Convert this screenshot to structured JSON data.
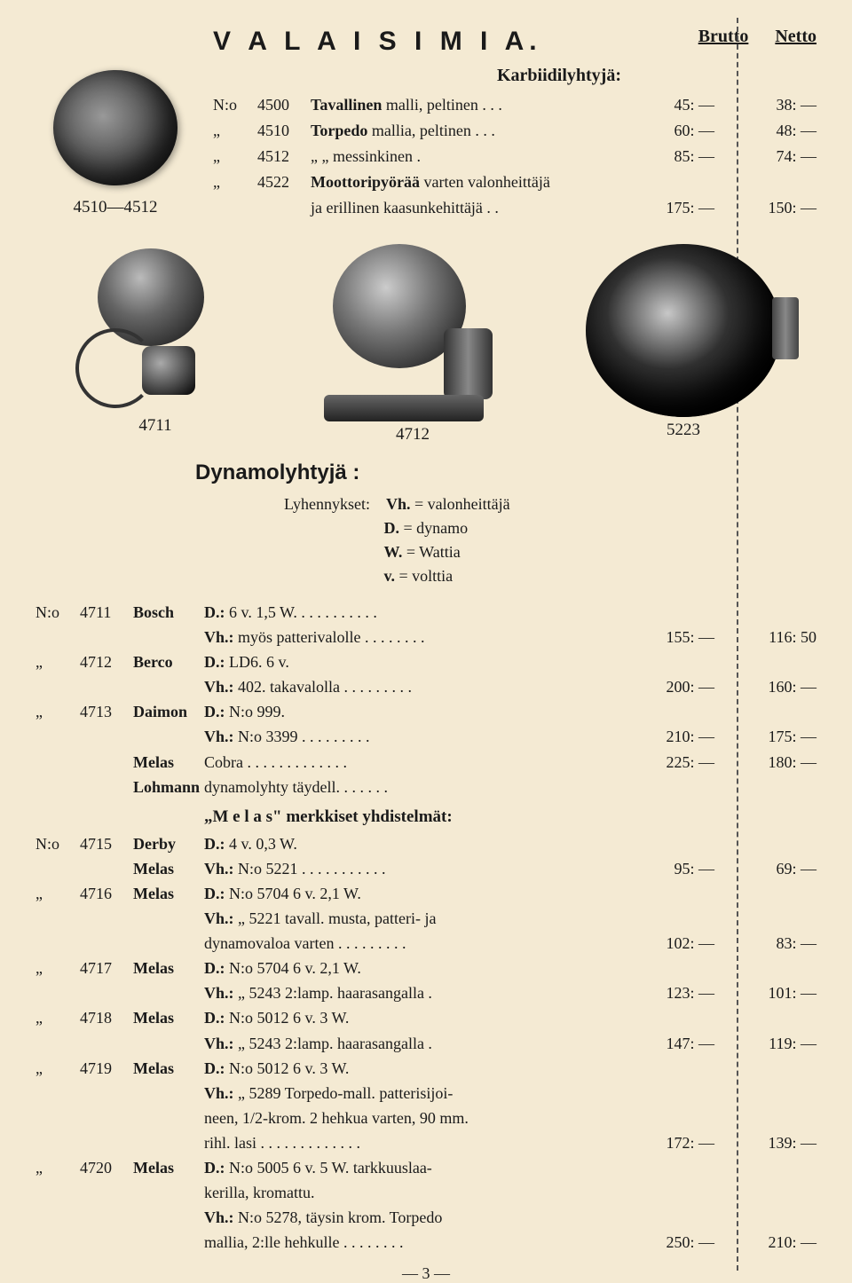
{
  "header": {
    "title": "V A L A I S I M I A.",
    "brutto": "Brutto",
    "netto": "Netto"
  },
  "karbiidi": {
    "heading": "Karbiidilyhtyjä:",
    "figlabel": "4510—4512",
    "rows": [
      {
        "no": "N:o",
        "num": "4500",
        "desc": "Tavallinen malli, peltinen . . .",
        "brutto": "45: —",
        "netto": "38: —"
      },
      {
        "no": "„",
        "num": "4510",
        "desc": "Torpedo mallia, peltinen . . .",
        "brutto": "60: —",
        "netto": "48: —"
      },
      {
        "no": "„",
        "num": "4512",
        "desc": "     „          „     messinkinen    .",
        "brutto": "85: —",
        "netto": "74: —"
      },
      {
        "no": "„",
        "num": "4522",
        "desc": "Moottoripyörää varten valonheittäjä",
        "brutto": "",
        "netto": ""
      },
      {
        "no": "",
        "num": "",
        "desc": "ja erillinen kaasunkehittäjä . .",
        "brutto": "175: —",
        "netto": "150: —"
      }
    ]
  },
  "illos": {
    "a": "4711",
    "b": "4712",
    "c": "5223"
  },
  "dynamo": {
    "heading": "Dynamolyhtyjä :",
    "legend_intro": "Lyhennykset:",
    "legend": [
      {
        "k": "Vh.",
        "v": "= valonheittäjä"
      },
      {
        "k": "D.",
        "v": "= dynamo"
      },
      {
        "k": "W.",
        "v": "= Wattia"
      },
      {
        "k": "v.",
        "v": "= volttia"
      }
    ],
    "rows": [
      {
        "no": "N:o",
        "num": "4711",
        "brand": "Bosch",
        "spec": "D.:  6 v. 1,5 W. . . . . . . . . . .",
        "brutto": "",
        "netto": ""
      },
      {
        "no": "",
        "num": "",
        "brand": "",
        "spec": "Vh.: myös patterivalolle . . . . . . . .",
        "brutto": "155: —",
        "netto": "116: 50"
      },
      {
        "no": "„",
        "num": "4712",
        "brand": "Berco",
        "spec": "D.:  LD6. 6 v.",
        "brutto": "",
        "netto": ""
      },
      {
        "no": "",
        "num": "",
        "brand": "",
        "spec": "Vh.: 402. takavalolla . . . . . . . . .",
        "brutto": "200: —",
        "netto": "160: —"
      },
      {
        "no": "„",
        "num": "4713",
        "brand": "Daimon",
        "spec": "D.:  N:o 999.",
        "brutto": "",
        "netto": ""
      },
      {
        "no": "",
        "num": "",
        "brand": "",
        "spec": "Vh.: N:o 3399  . . . . . . . . .",
        "brutto": "210: —",
        "netto": "175: —"
      },
      {
        "no": "",
        "num": "",
        "brand": "Melas",
        "spec": "Cobra  . . . . . . . . . . . . .",
        "brutto": "225: —",
        "netto": "180: —"
      },
      {
        "no": "",
        "num": "",
        "brand": "Lohmann",
        "spec": "dynamolyhty täydell. . . . . . .",
        "brutto": "",
        "netto": ""
      }
    ],
    "melas_heading": "„M e l a s\" merkkiset yhdistelmät:",
    "melas_rows": [
      {
        "no": "N:o",
        "num": "4715",
        "brand": "Derby",
        "spec": "D.:  4 v. 0,3 W.",
        "brutto": "",
        "netto": ""
      },
      {
        "no": "",
        "num": "",
        "brand": "Melas",
        "spec": "Vh.: N:o 5221 . . . . . . . . . . .",
        "brutto": "95: —",
        "netto": "69: —"
      },
      {
        "no": "„",
        "num": "4716",
        "brand": "Melas",
        "spec": "D.:  N:o 5704 6 v. 2,1 W.",
        "brutto": "",
        "netto": ""
      },
      {
        "no": "",
        "num": "",
        "brand": "",
        "spec": "Vh.:  „  5221 tavall. musta, patteri- ja",
        "brutto": "",
        "netto": ""
      },
      {
        "no": "",
        "num": "",
        "brand": "",
        "spec": "dynamovaloa varten . . . . . . . . .",
        "brutto": "102: —",
        "netto": "83: —"
      },
      {
        "no": "„",
        "num": "4717",
        "brand": "Melas",
        "spec": "D.:  N:o 5704 6 v. 2,1 W.",
        "brutto": "",
        "netto": ""
      },
      {
        "no": "",
        "num": "",
        "brand": "",
        "spec": "Vh.:  „  5243 2:lamp. haarasangalla   .",
        "brutto": "123: —",
        "netto": "101: —"
      },
      {
        "no": "„",
        "num": "4718",
        "brand": "Melas",
        "spec": "D.:  N:o 5012 6 v. 3 W.",
        "brutto": "",
        "netto": ""
      },
      {
        "no": "",
        "num": "",
        "brand": "",
        "spec": "Vh.:  „  5243 2:lamp. haarasangalla   .",
        "brutto": "147: —",
        "netto": "119: —"
      },
      {
        "no": "„",
        "num": "4719",
        "brand": "Melas",
        "spec": "D.:  N:o 5012 6 v. 3 W.",
        "brutto": "",
        "netto": ""
      },
      {
        "no": "",
        "num": "",
        "brand": "",
        "spec": "Vh.:  „  5289 Torpedo-mall. patterisijoi-",
        "brutto": "",
        "netto": ""
      },
      {
        "no": "",
        "num": "",
        "brand": "",
        "spec": "neen, 1/2-krom. 2 hehkua varten, 90 mm.",
        "brutto": "",
        "netto": ""
      },
      {
        "no": "",
        "num": "",
        "brand": "",
        "spec": "rihl. lasi  . . . . . . . . . . . . .",
        "brutto": "172: —",
        "netto": "139: —"
      },
      {
        "no": "„",
        "num": "4720",
        "brand": "Melas",
        "spec": "D.:  N:o 5005 6 v. 5 W. tarkkuuslaa-",
        "brutto": "",
        "netto": ""
      },
      {
        "no": "",
        "num": "",
        "brand": "",
        "spec": "kerilla, kromattu.",
        "brutto": "",
        "netto": ""
      },
      {
        "no": "",
        "num": "",
        "brand": "",
        "spec": "Vh.: N:o 5278, täysin krom. Torpedo",
        "brutto": "",
        "netto": ""
      },
      {
        "no": "",
        "num": "",
        "brand": "",
        "spec": "mallia, 2:lle hehkulle . . . . . . . .",
        "brutto": "250: —",
        "netto": "210: —"
      }
    ]
  },
  "page": "— 3 —"
}
